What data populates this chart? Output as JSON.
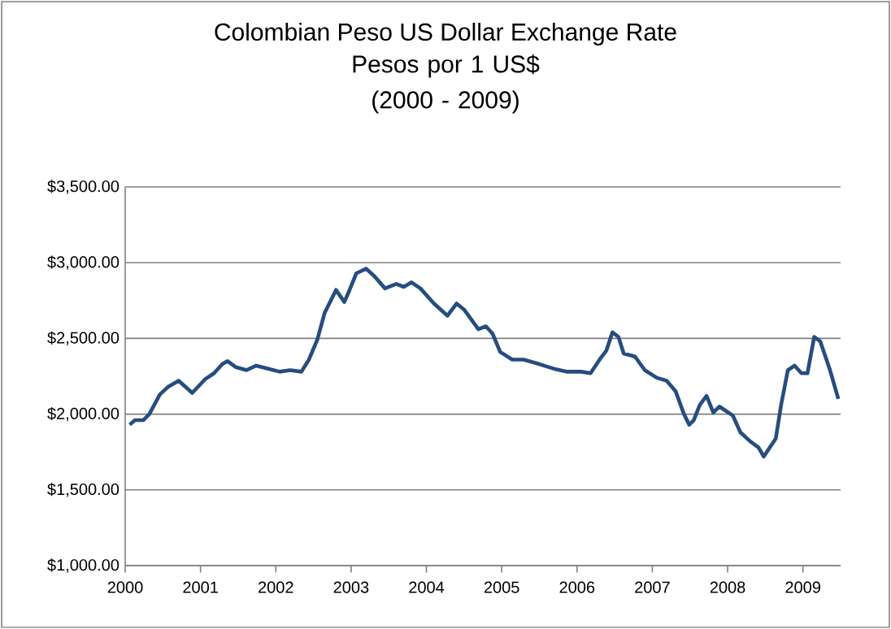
{
  "chart_data": {
    "type": "line",
    "title": "Colombian Peso US Dollar Exchange Rate",
    "subtitle": "Pesos por 1 US$ (2000 - 2009)",
    "xlim": [
      2000,
      2009.5
    ],
    "xticks": [
      2000,
      2001,
      2002,
      2003,
      2004,
      2005,
      2006,
      2007,
      2008,
      2009
    ],
    "ylim": [
      1000,
      3500
    ],
    "yticks": [
      {
        "value": 1000,
        "label": "$1,000.00"
      },
      {
        "value": 1500,
        "label": "$1,500.00"
      },
      {
        "value": 2000,
        "label": "$2,000.00"
      },
      {
        "value": 2500,
        "label": "$2,500.00"
      },
      {
        "value": 3000,
        "label": "$3,000.00"
      },
      {
        "value": 3500,
        "label": "$3,500.00"
      }
    ],
    "grid": "y",
    "marker": "none",
    "line_style": "solid",
    "series": [
      {
        "color": "#264d7f",
        "x": [
          2000.06,
          2000.13,
          2000.24,
          2000.32,
          2000.46,
          2000.57,
          2000.71,
          2000.89,
          2001.06,
          2001.18,
          2001.29,
          2001.36,
          2001.47,
          2001.61,
          2001.74,
          2001.9,
          2002.05,
          2002.19,
          2002.34,
          2002.44,
          2002.55,
          2002.65,
          2002.8,
          2002.91,
          2002.98,
          2003.07,
          2003.2,
          2003.31,
          2003.45,
          2003.6,
          2003.7,
          2003.8,
          2003.92,
          2004.1,
          2004.28,
          2004.4,
          2004.5,
          2004.69,
          2004.79,
          2004.88,
          2004.98,
          2005.14,
          2005.29,
          2005.5,
          2005.69,
          2005.87,
          2006.05,
          2006.18,
          2006.3,
          2006.39,
          2006.47,
          2006.55,
          2006.62,
          2006.77,
          2006.9,
          2007.06,
          2007.19,
          2007.31,
          2007.42,
          2007.49,
          2007.55,
          2007.63,
          2007.72,
          2007.81,
          2007.89,
          2008.07,
          2008.17,
          2008.3,
          2008.41,
          2008.48,
          2008.64,
          2008.71,
          2008.8,
          2008.89,
          2008.98,
          2009.06,
          2009.15,
          2009.23,
          2009.36,
          2009.47
        ],
        "values": [
          1930,
          1960,
          1960,
          2000,
          2130,
          2180,
          2220,
          2140,
          2230,
          2270,
          2330,
          2350,
          2310,
          2290,
          2320,
          2300,
          2280,
          2290,
          2280,
          2360,
          2490,
          2670,
          2820,
          2740,
          2820,
          2930,
          2960,
          2910,
          2830,
          2860,
          2840,
          2870,
          2830,
          2730,
          2650,
          2730,
          2690,
          2560,
          2580,
          2530,
          2410,
          2360,
          2360,
          2330,
          2300,
          2280,
          2280,
          2270,
          2360,
          2420,
          2540,
          2510,
          2400,
          2380,
          2290,
          2240,
          2220,
          2150,
          2000,
          1930,
          1960,
          2060,
          2120,
          2010,
          2050,
          1990,
          1880,
          1820,
          1780,
          1720,
          1840,
          2060,
          2290,
          2320,
          2270,
          2270,
          2510,
          2480,
          2290,
          2100
        ]
      }
    ]
  }
}
